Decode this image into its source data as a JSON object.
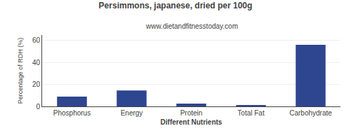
{
  "chart_data": {
    "type": "bar",
    "title": "Persimmons, japanese, dried per 100g",
    "subtitle": "www.dietandfitnesstoday.com",
    "xlabel": "Different Nutrients",
    "ylabel": "Percentage of RDH (%)",
    "categories": [
      "Phosphorus",
      "Energy",
      "Protein",
      "Total Fat",
      "Carbohydrate"
    ],
    "values": [
      9,
      14.5,
      2.5,
      1.2,
      56
    ],
    "color": "#2e4590",
    "ylim": [
      0,
      65
    ],
    "yticks": [
      0,
      20,
      40,
      60
    ],
    "grid": true
  }
}
